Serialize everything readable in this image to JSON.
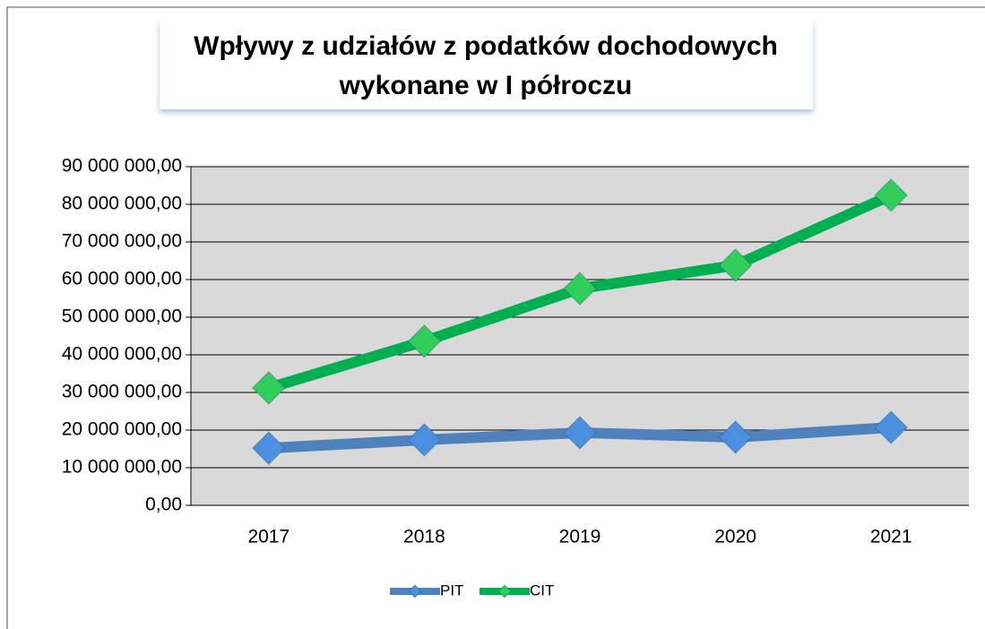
{
  "chart_data": {
    "type": "line",
    "title": [
      "Wpływy z udziałów z podatków dochodowych",
      "wykonane w I półroczu"
    ],
    "categories": [
      "2017",
      "2018",
      "2019",
      "2020",
      "2021"
    ],
    "series": [
      {
        "name": "PIT",
        "color": "#4f81bd",
        "marker_color": "#4a8fe0",
        "values": [
          15200000,
          17400000,
          19300000,
          18100000,
          20700000
        ]
      },
      {
        "name": "CIT",
        "color": "#00b050",
        "marker_color": "#2fcf5a",
        "values": [
          31200000,
          43600000,
          57600000,
          63800000,
          82400000
        ]
      }
    ],
    "ylim": [
      0,
      90000000
    ],
    "yticks": [
      {
        "value": 0,
        "label": "0,00"
      },
      {
        "value": 10000000,
        "label": "10 000 000,00"
      },
      {
        "value": 20000000,
        "label": "20 000 000,00"
      },
      {
        "value": 30000000,
        "label": "30 000 000,00"
      },
      {
        "value": 40000000,
        "label": "40 000 000,00"
      },
      {
        "value": 50000000,
        "label": "50 000 000,00"
      },
      {
        "value": 60000000,
        "label": "60 000 000,00"
      },
      {
        "value": 70000000,
        "label": "70 000 000,00"
      },
      {
        "value": 80000000,
        "label": "80 000 000,00"
      },
      {
        "value": 90000000,
        "label": "90 000 000,00"
      }
    ],
    "grid": true,
    "plot_background": "#d9d9d9",
    "legend": "bottom"
  }
}
